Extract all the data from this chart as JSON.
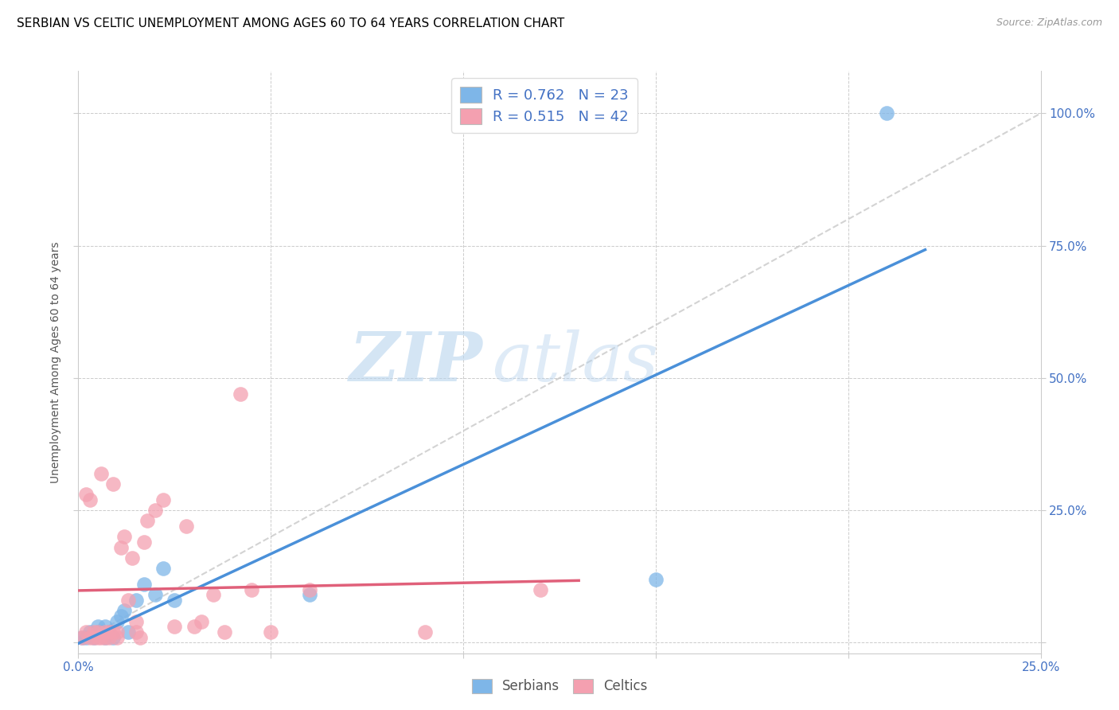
{
  "title": "SERBIAN VS CELTIC UNEMPLOYMENT AMONG AGES 60 TO 64 YEARS CORRELATION CHART",
  "source": "Source: ZipAtlas.com",
  "ylabel_label": "Unemployment Among Ages 60 to 64 years",
  "xlim": [
    0.0,
    0.25
  ],
  "ylim": [
    -0.02,
    1.08
  ],
  "x_ticks": [
    0.0,
    0.05,
    0.1,
    0.15,
    0.2,
    0.25
  ],
  "x_tick_labels": [
    "0.0%",
    "",
    "",
    "",
    "",
    "25.0%"
  ],
  "y_ticks": [
    0.0,
    0.25,
    0.5,
    0.75,
    1.0
  ],
  "y_tick_labels": [
    "",
    "25.0%",
    "50.0%",
    "75.0%",
    "100.0%"
  ],
  "serbian_color": "#7EB6E8",
  "celtic_color": "#F4A0B0",
  "serbian_line_color": "#4A90D9",
  "celtic_line_color": "#E0607A",
  "diagonal_color": "#C8C8C8",
  "R_serbian": 0.762,
  "N_serbian": 23,
  "R_celtic": 0.515,
  "N_celtic": 42,
  "legend_text_color": "#4472C4",
  "title_fontsize": 11,
  "axis_label_fontsize": 10,
  "tick_fontsize": 11,
  "watermark_zip": "ZIP",
  "watermark_atlas": "atlas",
  "background_color": "#FFFFFF",
  "grid_color": "#CCCCCC",
  "serbian_points_x": [
    0.001,
    0.002,
    0.003,
    0.004,
    0.005,
    0.005,
    0.006,
    0.007,
    0.007,
    0.008,
    0.009,
    0.01,
    0.011,
    0.012,
    0.013,
    0.015,
    0.017,
    0.02,
    0.022,
    0.025,
    0.06,
    0.15,
    0.21
  ],
  "serbian_points_y": [
    0.01,
    0.01,
    0.02,
    0.01,
    0.02,
    0.03,
    0.02,
    0.01,
    0.03,
    0.02,
    0.01,
    0.04,
    0.05,
    0.06,
    0.02,
    0.08,
    0.11,
    0.09,
    0.14,
    0.08,
    0.09,
    0.12,
    1.0
  ],
  "celtic_points_x": [
    0.001,
    0.002,
    0.002,
    0.003,
    0.003,
    0.004,
    0.004,
    0.005,
    0.005,
    0.006,
    0.006,
    0.007,
    0.007,
    0.008,
    0.008,
    0.009,
    0.009,
    0.01,
    0.01,
    0.011,
    0.012,
    0.013,
    0.014,
    0.015,
    0.015,
    0.016,
    0.017,
    0.018,
    0.02,
    0.022,
    0.025,
    0.028,
    0.03,
    0.032,
    0.035,
    0.038,
    0.042,
    0.045,
    0.05,
    0.06,
    0.09,
    0.12
  ],
  "celtic_points_y": [
    0.01,
    0.02,
    0.28,
    0.01,
    0.27,
    0.02,
    0.01,
    0.02,
    0.01,
    0.01,
    0.32,
    0.01,
    0.02,
    0.02,
    0.01,
    0.02,
    0.3,
    0.02,
    0.01,
    0.18,
    0.2,
    0.08,
    0.16,
    0.04,
    0.02,
    0.01,
    0.19,
    0.23,
    0.25,
    0.27,
    0.03,
    0.22,
    0.03,
    0.04,
    0.09,
    0.02,
    0.47,
    0.1,
    0.02,
    0.1,
    0.02,
    0.1
  ]
}
